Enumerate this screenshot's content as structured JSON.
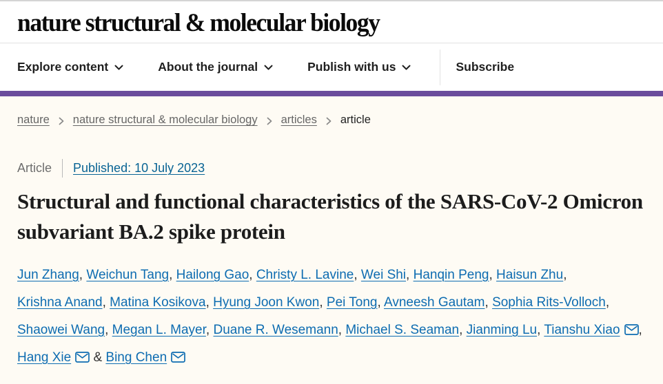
{
  "header": {
    "logo": "nature structural & molecular biology"
  },
  "nav": {
    "items": [
      {
        "id": "explore-content",
        "label": "Explore content"
      },
      {
        "id": "about-the-journal",
        "label": "About the journal"
      },
      {
        "id": "publish-with-us",
        "label": "Publish with us"
      }
    ],
    "subscribe_label": "Subscribe"
  },
  "breadcrumb": {
    "items": [
      "nature",
      "nature structural & molecular biology",
      "articles",
      "article"
    ]
  },
  "article": {
    "type_label": "Article",
    "published_label": "Published: 10 July 2023",
    "title": "Structural and functional characteristics of the SARS-CoV-2 Omicron subvariant BA.2 spike protein",
    "authors": [
      {
        "name": "Jun Zhang"
      },
      {
        "name": "Weichun Tang"
      },
      {
        "name": "Hailong Gao"
      },
      {
        "name": "Christy L. Lavine"
      },
      {
        "name": "Wei Shi"
      },
      {
        "name": "Hanqin Peng"
      },
      {
        "name": "Haisun Zhu"
      },
      {
        "name": "Krishna Anand"
      },
      {
        "name": "Matina Kosikova"
      },
      {
        "name": "Hyung Joon Kwon"
      },
      {
        "name": "Pei Tong"
      },
      {
        "name": "Avneesh Gautam"
      },
      {
        "name": "Sophia Rits-Volloch"
      },
      {
        "name": "Shaowei Wang"
      },
      {
        "name": "Megan L. Mayer"
      },
      {
        "name": "Duane R. Wesemann"
      },
      {
        "name": "Michael S. Seaman"
      },
      {
        "name": "Jianming Lu"
      },
      {
        "name": "Tianshu Xiao",
        "email_icon": true
      },
      {
        "name": "Hang Xie",
        "email_icon": true
      },
      {
        "name": "Bing Chen",
        "email_icon": true
      }
    ]
  },
  "colors": {
    "brand_purple": "#6b4c9c",
    "author_link_blue": "#0d6cb1",
    "published_link_blue": "#086394",
    "page_background": "#fefbf4",
    "breadcrumb_gray": "#666666",
    "nav_text": "#1f1f1f"
  }
}
